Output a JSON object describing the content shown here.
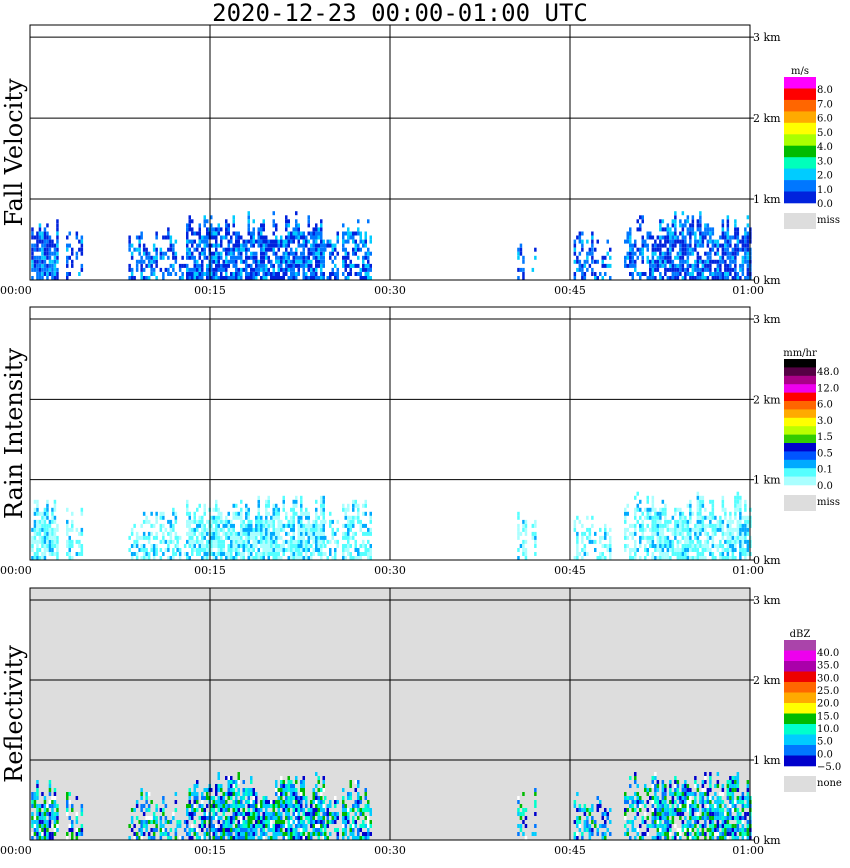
{
  "title": "2020-12-23   00:00-01:00 UTC",
  "chart_data": [
    {
      "type": "heatmap",
      "ylabel": "Fall Velocity",
      "x_ticks": [
        "00:00",
        "00:15",
        "00:30",
        "00:45",
        "01:00"
      ],
      "y_ticks": [
        "0 km",
        "1 km",
        "2 km",
        "3 km"
      ],
      "ylim": [
        0,
        3.15
      ],
      "background": "#ffffff",
      "legend": {
        "unit": "m/s",
        "colors": [
          "#ff00ff",
          "#ff0000",
          "#ff6600",
          "#ffaa00",
          "#ffff00",
          "#aaff00",
          "#00bb00",
          "#00ffbb",
          "#00ccff",
          "#0077ff",
          "#0022dd"
        ],
        "labels": [
          "8.0",
          "7.0",
          "6.0",
          "5.0",
          "4.0",
          "3.0",
          "2.0",
          "1.0",
          "0.0"
        ],
        "miss_color": "#dddddd",
        "miss_label": "miss"
      }
    },
    {
      "type": "heatmap",
      "ylabel": "Rain Intensity",
      "x_ticks": [
        "00:00",
        "00:15",
        "00:30",
        "00:45",
        "01:00"
      ],
      "y_ticks": [
        "0 km",
        "1 km",
        "2 km",
        "3 km"
      ],
      "ylim": [
        0,
        3.15
      ],
      "background": "#ffffff",
      "legend": {
        "unit": "mm/hr",
        "colors": [
          "#000000",
          "#550044",
          "#aa0088",
          "#ee00ee",
          "#ff0000",
          "#ff6600",
          "#ffaa00",
          "#ffff00",
          "#bbff00",
          "#33cc00",
          "#0000cc",
          "#0055ff",
          "#00aaff",
          "#55ffff",
          "#aaffff"
        ],
        "labels": [
          "48.0",
          "12.0",
          "6.0",
          "3.0",
          "1.5",
          "0.5",
          "0.1",
          "0.0"
        ],
        "miss_color": "#dddddd",
        "miss_label": "miss"
      }
    },
    {
      "type": "heatmap",
      "ylabel": "Reflectivity",
      "x_ticks": [
        "00:00",
        "00:15",
        "00:30",
        "00:45",
        "01:00"
      ],
      "y_ticks": [
        "0 km",
        "1 km",
        "2 km",
        "3 km"
      ],
      "ylim": [
        0,
        3.15
      ],
      "background": "#dddddd",
      "legend": {
        "unit": "dBZ",
        "colors": [
          "#aa44aa",
          "#ee00ee",
          "#aa00aa",
          "#ee0000",
          "#ff6600",
          "#ffaa00",
          "#ffff00",
          "#00bb00",
          "#00ffcc",
          "#00ccff",
          "#0077ff",
          "#0000cc"
        ],
        "labels": [
          "40.0",
          "35.0",
          "30.0",
          "25.0",
          "20.0",
          "15.0",
          "10.0",
          "5.0",
          "0.0",
          "−5.0"
        ],
        "miss_color": "#dddddd",
        "miss_label": "none"
      }
    }
  ]
}
